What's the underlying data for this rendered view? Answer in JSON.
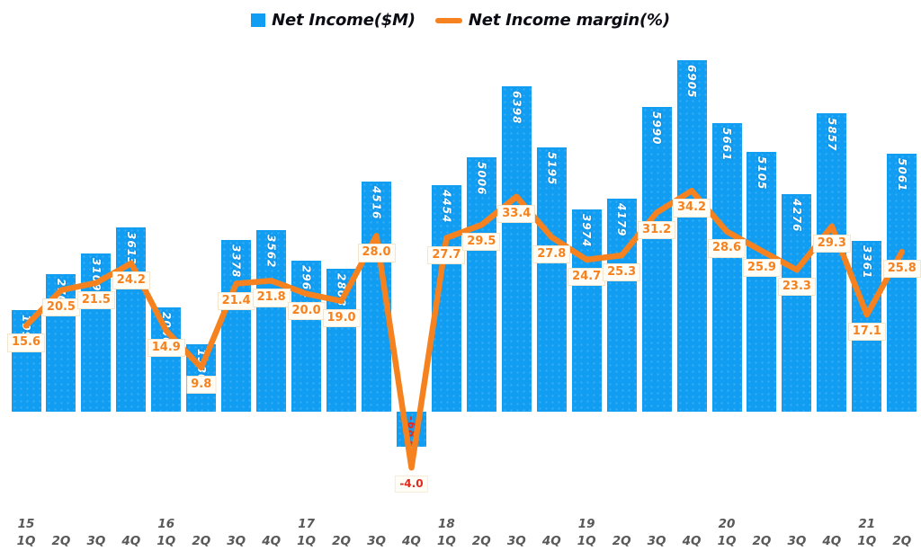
{
  "legend": {
    "bar_label": "Net Income($M)",
    "line_label": "Net Income margin(%)"
  },
  "colors": {
    "bar": "#119df2",
    "line": "#f5821f",
    "negative": "#e02b20",
    "axis_text": "#595959",
    "legend_text": "#0c0c14",
    "label_box_bg": "#fffdf6"
  },
  "chart_data": {
    "type": "bar",
    "title": "",
    "xlabel": "",
    "ylabel": "",
    "grid": false,
    "legend_position": "top",
    "categories": [
      "1Q15",
      "2Q15",
      "3Q15",
      "4Q15",
      "1Q16",
      "2Q16",
      "3Q16",
      "4Q16",
      "1Q17",
      "2Q17",
      "3Q17",
      "4Q17",
      "1Q18",
      "2Q18",
      "3Q18",
      "4Q18",
      "1Q19",
      "2Q19",
      "3Q19",
      "4Q19",
      "1Q20",
      "2Q20",
      "3Q20",
      "4Q20",
      "1Q21",
      "2Q21"
    ],
    "series": [
      {
        "name": "Net Income($M)",
        "type": "bar",
        "axis": "left",
        "ylim": [
          -1000,
          7000
        ],
        "values": [
          1992,
          2706,
          3109,
          3613,
          2046,
          1330,
          3378,
          3562,
          2964,
          2808,
          4516,
          -687,
          4454,
          5006,
          6398,
          5195,
          3974,
          4179,
          5990,
          6905,
          5661,
          5105,
          4276,
          5857,
          3361,
          5061
        ]
      },
      {
        "name": "Net Income margin(%)",
        "type": "line",
        "axis": "right",
        "ylim": [
          -8,
          40
        ],
        "values": [
          15.6,
          20.5,
          21.5,
          24.2,
          14.9,
          9.8,
          21.4,
          21.8,
          20.0,
          19.0,
          28.0,
          -4.0,
          27.7,
          29.5,
          33.4,
          27.8,
          24.7,
          25.3,
          31.2,
          34.2,
          28.6,
          25.9,
          23.3,
          29.3,
          17.1,
          25.8
        ]
      }
    ],
    "x_axis_rows": {
      "quarters": [
        "1Q",
        "2Q",
        "3Q",
        "4Q",
        "1Q",
        "2Q",
        "3Q",
        "4Q",
        "1Q",
        "2Q",
        "3Q",
        "4Q",
        "1Q",
        "2Q",
        "3Q",
        "4Q",
        "1Q",
        "2Q",
        "3Q",
        "4Q",
        "1Q",
        "2Q",
        "3Q",
        "4Q",
        "1Q",
        "2Q"
      ],
      "years": [
        "15",
        "",
        "",
        "",
        "16",
        "",
        "",
        "",
        "17",
        "",
        "",
        "",
        "18",
        "",
        "",
        "",
        "19",
        "",
        "",
        "",
        "20",
        "",
        "",
        "",
        "21",
        ""
      ]
    }
  }
}
